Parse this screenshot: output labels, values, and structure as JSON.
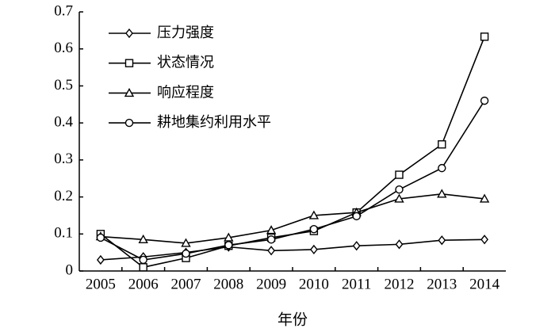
{
  "chart_data": {
    "type": "line",
    "x_label": "年份",
    "categories": [
      "2005",
      "2006",
      "2007",
      "2008",
      "2009",
      "2010",
      "2011",
      "2012",
      "2013",
      "2014"
    ],
    "series": [
      {
        "name": "压力强度",
        "color": "#000000",
        "marker": "diamond",
        "values": [
          0.03,
          0.038,
          0.05,
          0.065,
          0.055,
          0.058,
          0.068,
          0.072,
          0.083,
          0.085
        ]
      },
      {
        "name": "状态情况",
        "color": "#000000",
        "marker": "square",
        "values": [
          0.1,
          0.01,
          0.035,
          0.068,
          0.09,
          0.108,
          0.158,
          0.26,
          0.342,
          0.633
        ]
      },
      {
        "name": "响应程度",
        "color": "#000000",
        "marker": "triangle",
        "values": [
          0.093,
          0.085,
          0.075,
          0.09,
          0.11,
          0.15,
          0.158,
          0.195,
          0.208,
          0.195
        ]
      },
      {
        "name": "耕地集约利用水平",
        "color": "#000000",
        "marker": "circle",
        "values": [
          0.09,
          0.03,
          0.047,
          0.07,
          0.085,
          0.113,
          0.148,
          0.22,
          0.278,
          0.46
        ]
      }
    ],
    "ylim": [
      0,
      0.7
    ],
    "yticks": [
      0,
      0.1,
      0.2,
      0.3,
      0.4,
      0.5,
      0.6,
      0.7
    ],
    "grid": false,
    "legend": "upper-left"
  }
}
